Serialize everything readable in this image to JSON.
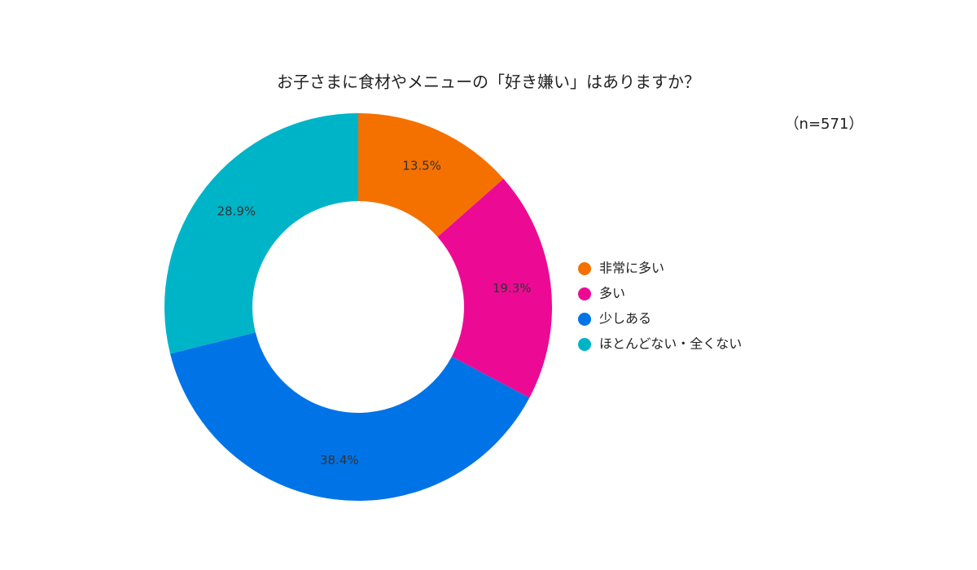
{
  "chart_data": {
    "type": "donut",
    "title": "お子さまに食材やメニューの「好き嫌い」はありますか？",
    "subtitle": "（n=571）",
    "categories": [
      "非常に多い",
      "多い",
      "少しある",
      "ほとんどない・全くない"
    ],
    "values": [
      13.5,
      19.3,
      38.4,
      28.9
    ],
    "value_labels": [
      "13.5%",
      "19.3%",
      "38.4%",
      "28.9%"
    ],
    "colors": [
      "#f47100",
      "#ec0a95",
      "#0073e6",
      "#00b4c8"
    ],
    "legend": "right"
  }
}
